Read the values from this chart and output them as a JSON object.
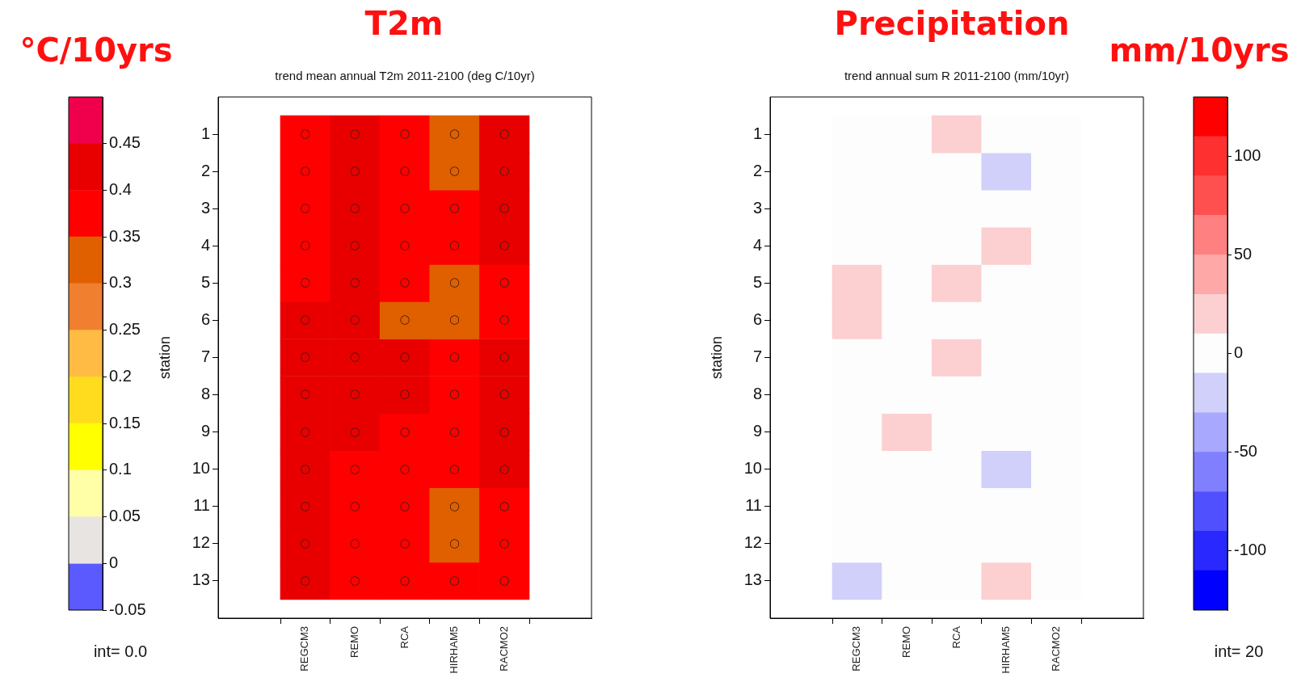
{
  "chart_data": [
    {
      "type": "heatmap",
      "title": "T2m",
      "subtitle": "trend mean annual T2m 2011-2100 (deg C/10yr)",
      "ylabel": "station",
      "clabel": "°C/10yrs",
      "categories": [
        "REGCM3",
        "REMO",
        "RCA",
        "HIRHAM5",
        "RACMO2"
      ],
      "y_categories": [
        "1",
        "2",
        "3",
        "4",
        "5",
        "6",
        "7",
        "8",
        "9",
        "10",
        "11",
        "12",
        "13"
      ],
      "cells": [
        [
          0.375,
          0.425,
          0.375,
          0.325,
          0.425
        ],
        [
          0.375,
          0.425,
          0.375,
          0.325,
          0.425
        ],
        [
          0.375,
          0.425,
          0.375,
          0.375,
          0.425
        ],
        [
          0.375,
          0.425,
          0.375,
          0.375,
          0.425
        ],
        [
          0.375,
          0.425,
          0.375,
          0.325,
          0.375
        ],
        [
          0.425,
          0.425,
          0.325,
          0.325,
          0.375
        ],
        [
          0.425,
          0.425,
          0.425,
          0.375,
          0.425
        ],
        [
          0.425,
          0.425,
          0.425,
          0.375,
          0.425
        ],
        [
          0.425,
          0.425,
          0.375,
          0.375,
          0.425
        ],
        [
          0.425,
          0.375,
          0.375,
          0.375,
          0.425
        ],
        [
          0.425,
          0.375,
          0.375,
          0.325,
          0.375
        ],
        [
          0.425,
          0.375,
          0.375,
          0.325,
          0.375
        ],
        [
          0.425,
          0.375,
          0.375,
          0.375,
          0.375
        ]
      ],
      "cell_labels": [
        [
          "○",
          "○",
          "○",
          "○",
          "○"
        ],
        [
          "○",
          "○",
          "○",
          "○",
          "○"
        ],
        [
          "○",
          "○",
          "○",
          "○",
          "○"
        ],
        [
          "○",
          "○",
          "○",
          "○",
          "○"
        ],
        [
          "○",
          "○",
          "○",
          "○",
          "○"
        ],
        [
          "○",
          "○",
          "○",
          "○",
          "○"
        ],
        [
          "○",
          "○",
          "○",
          "○",
          "○"
        ],
        [
          "○",
          "○",
          "○",
          "○",
          "○"
        ],
        [
          "○",
          "○",
          "○",
          "○",
          "○"
        ],
        [
          "○",
          "○",
          "○",
          "○",
          "○"
        ],
        [
          "○",
          "○",
          "○",
          "○",
          "○"
        ],
        [
          "○",
          "○",
          "○",
          "○",
          "○"
        ],
        [
          "○",
          "○",
          "○",
          "○",
          "○"
        ]
      ],
      "clim": [
        -0.05,
        0.5
      ],
      "cticks": [
        -0.05,
        0,
        0.05,
        0.1,
        0.15,
        0.2,
        0.25,
        0.3,
        0.35,
        0.4,
        0.45
      ],
      "colors": [
        "#5a5aff",
        "#e8e4e2",
        "#ffffa8",
        "#ffff00",
        "#ffdc1e",
        "#ffbb44",
        "#f08030",
        "#e06000",
        "#ff0000",
        "#e80000",
        "#f0004c"
      ],
      "annotations": [
        "int= 0.0"
      ]
    },
    {
      "type": "heatmap",
      "title": "Precipitation",
      "subtitle": "trend annual sum R 2011-2100 (mm/10yr)",
      "ylabel": "station",
      "clabel": "mm/10yrs",
      "categories": [
        "REGCM3",
        "REMO",
        "RCA",
        "HIRHAM5",
        "RACMO2"
      ],
      "y_categories": [
        "1",
        "2",
        "3",
        "4",
        "5",
        "6",
        "7",
        "8",
        "9",
        "10",
        "11",
        "12",
        "13"
      ],
      "cells": [
        [
          0,
          0,
          20,
          0,
          0
        ],
        [
          0,
          0,
          0,
          -20,
          0
        ],
        [
          0,
          0,
          0,
          0,
          0
        ],
        [
          0,
          0,
          0,
          20,
          0
        ],
        [
          20,
          0,
          20,
          0,
          0
        ],
        [
          20,
          0,
          0,
          0,
          0
        ],
        [
          0,
          0,
          20,
          0,
          0
        ],
        [
          0,
          0,
          0,
          0,
          0
        ],
        [
          0,
          20,
          0,
          0,
          0
        ],
        [
          0,
          0,
          0,
          -20,
          0
        ],
        [
          0,
          0,
          0,
          0,
          0
        ],
        [
          0,
          0,
          0,
          0,
          0
        ],
        [
          -20,
          0,
          0,
          20,
          0
        ]
      ],
      "clim": [
        -130,
        130
      ],
      "cticks": [
        -100,
        -50,
        0,
        50,
        100
      ],
      "colors": [
        "#0000ff",
        "#2828ff",
        "#5050ff",
        "#8080ff",
        "#a8a8ff",
        "#d0d0fa",
        "#fdfdfd",
        "#fcd0d0",
        "#ffa8a8",
        "#ff8080",
        "#ff5050",
        "#ff3030",
        "#ff0000"
      ],
      "annotations": [
        "int= 20"
      ]
    }
  ]
}
